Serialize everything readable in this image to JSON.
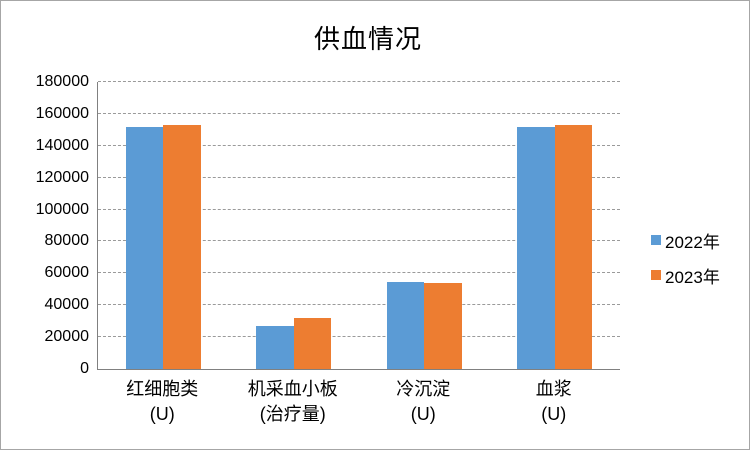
{
  "window": {
    "background": "#ffffff",
    "border_color": "#a6a6a6"
  },
  "chart_data": {
    "type": "bar",
    "title": "供血情况",
    "categories": [
      [
        "红细胞类",
        "(U)"
      ],
      [
        "机采血小板",
        "(治疗量)"
      ],
      [
        "冷沉淀",
        "(U)"
      ],
      [
        "血浆",
        "(U)"
      ]
    ],
    "series": [
      {
        "name": "2022年",
        "color": "#5B9BD5",
        "values": [
          151500,
          27000,
          54800,
          151500
        ]
      },
      {
        "name": "2023年",
        "color": "#ED7D31",
        "values": [
          153300,
          32000,
          54000,
          153300
        ]
      }
    ],
    "xlabel": "",
    "ylabel": "",
    "ylim": [
      0,
      180000
    ],
    "ytick_step": 20000,
    "ytick_labels": [
      "0",
      "20000",
      "40000",
      "60000",
      "80000",
      "100000",
      "120000",
      "140000",
      "160000",
      "180000"
    ],
    "grid": "horizontal-dashed",
    "gridline_color": "#9a9a9a",
    "axis_color": "#808080",
    "text_color": "#000000",
    "legend_position": "right"
  }
}
